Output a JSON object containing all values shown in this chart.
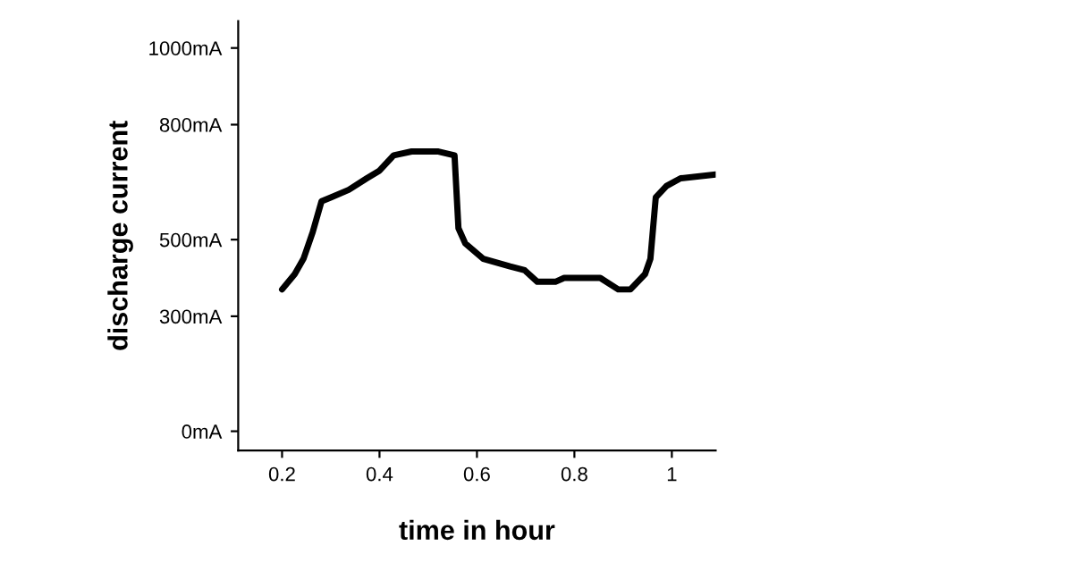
{
  "chart_data": {
    "type": "line",
    "xlabel": "time in hour",
    "ylabel": "discharge current",
    "x": [
      0.2,
      0.226,
      0.244,
      0.263,
      0.281,
      0.3,
      0.337,
      0.374,
      0.4,
      0.429,
      0.466,
      0.521,
      0.554,
      0.562,
      0.576,
      0.613,
      0.668,
      0.698,
      0.724,
      0.761,
      0.779,
      0.853,
      0.89,
      0.915,
      0.945,
      0.956,
      0.967,
      0.989,
      1.018,
      1.09
    ],
    "series": [
      {
        "color": "#000000",
        "values": [
          370,
          410,
          450,
          520,
          600,
          610,
          630,
          660,
          680,
          720,
          730,
          730,
          720,
          530,
          490,
          450,
          430,
          420,
          390,
          390,
          400,
          400,
          370,
          370,
          410,
          450,
          610,
          640,
          660,
          670
        ]
      }
    ],
    "xlim": [
      0.11,
      1.09
    ],
    "ylim": [
      -50,
      1070
    ],
    "xticks": [
      0.2,
      0.4,
      0.6,
      0.8,
      {
        "value": 1,
        "label": "1"
      }
    ],
    "yticks": [
      {
        "value": 0,
        "label": "0mA"
      },
      {
        "value": 300,
        "label": "300mA"
      },
      {
        "value": 500,
        "label": "500mA"
      },
      {
        "value": 800,
        "label": "800mA"
      },
      {
        "value": 1000,
        "label": "1000mA"
      }
    ],
    "grid": false,
    "marker": "none",
    "line_style": "solid"
  }
}
